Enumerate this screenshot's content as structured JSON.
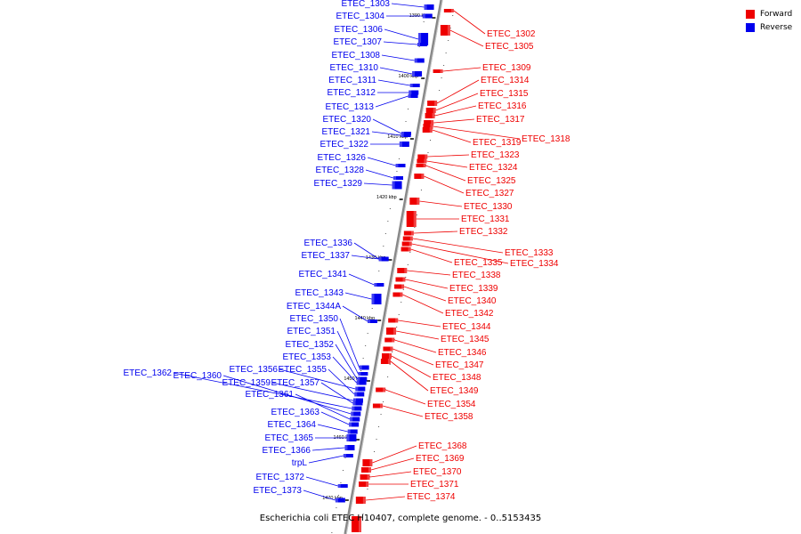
{
  "caption": "Escherichia coli ETEC H10407, complete genome. - 0..5153435",
  "legend": [
    {
      "label": "Forward",
      "color": "#ee0000"
    },
    {
      "label": "Reverse",
      "color": "#0000ee"
    }
  ],
  "scale_labels": [
    "1390 kbp",
    "1400 kbp",
    "1410 kbp",
    "1420 kbp",
    "1430 kbp",
    "1440 kbp",
    "1450 kbp",
    "1460 kbp",
    "1470 kbp"
  ],
  "reverse_genes": [
    "ETEC_1303",
    "ETEC_1304",
    "ETEC_1306",
    "ETEC_1307",
    "ETEC_1308",
    "ETEC_1310",
    "ETEC_1311",
    "ETEC_1312",
    "ETEC_1313",
    "ETEC_1320",
    "ETEC_1321",
    "ETEC_1322",
    "ETEC_1326",
    "ETEC_1328",
    "ETEC_1329",
    "ETEC_1336",
    "ETEC_1337",
    "ETEC_1341",
    "ETEC_1343",
    "ETEC_1344A",
    "ETEC_1350",
    "ETEC_1351",
    "ETEC_1352",
    "ETEC_1353",
    "ETEC_1356",
    "ETEC_1355",
    "ETEC_1362",
    "ETEC_1360",
    "ETEC_1359",
    "ETEC_1357",
    "ETEC_1361",
    "ETEC_1363",
    "ETEC_1364",
    "ETEC_1365",
    "ETEC_1366",
    "trpL",
    "ETEC_1372",
    "ETEC_1373"
  ],
  "forward_genes": [
    "ETEC_1302",
    "ETEC_1305",
    "ETEC_1309",
    "ETEC_1314",
    "ETEC_1315",
    "ETEC_1316",
    "ETEC_1317",
    "ETEC_1318",
    "ETEC_1319",
    "ETEC_1323",
    "ETEC_1324",
    "ETEC_1325",
    "ETEC_1327",
    "ETEC_1330",
    "ETEC_1331",
    "ETEC_1332",
    "ETEC_1333",
    "ETEC_1334",
    "ETEC_1335",
    "ETEC_1338",
    "ETEC_1339",
    "ETEC_1340",
    "ETEC_1342",
    "ETEC_1344",
    "ETEC_1345",
    "ETEC_1346",
    "ETEC_1347",
    "ETEC_1348",
    "ETEC_1349",
    "ETEC_1354",
    "ETEC_1358",
    "ETEC_1368",
    "ETEC_1369",
    "ETEC_1370",
    "ETEC_1371",
    "ETEC_1374"
  ]
}
